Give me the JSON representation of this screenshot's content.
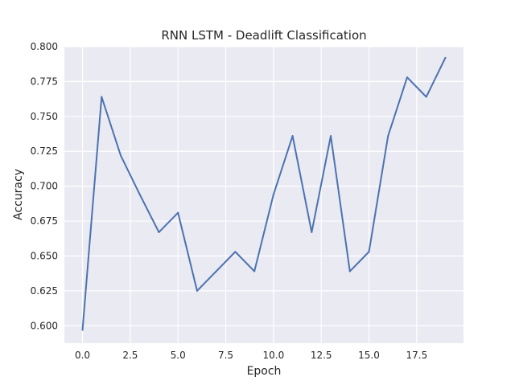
{
  "chart_data": {
    "type": "line",
    "title": "RNN LSTM - Deadlift Classification",
    "xlabel": "Epoch",
    "ylabel": "Accuracy",
    "xlim": [
      -0.95,
      19.95
    ],
    "ylim": [
      0.5875,
      0.8
    ],
    "xticks": [
      0.0,
      2.5,
      5.0,
      7.5,
      10.0,
      12.5,
      15.0,
      17.5
    ],
    "xtick_labels": [
      "0.0",
      "2.5",
      "5.0",
      "7.5",
      "10.0",
      "12.5",
      "15.0",
      "17.5"
    ],
    "yticks": [
      0.6,
      0.625,
      0.65,
      0.675,
      0.7,
      0.725,
      0.75,
      0.775,
      0.8
    ],
    "ytick_labels": [
      "0.600",
      "0.625",
      "0.650",
      "0.675",
      "0.700",
      "0.725",
      "0.750",
      "0.775",
      "0.800"
    ],
    "grid": true,
    "colors": {
      "background": "#eaeaf2",
      "grid": "#ffffff",
      "line": "#4c72b0"
    },
    "series": [
      {
        "x": [
          0,
          1,
          2,
          3,
          4,
          5,
          6,
          7,
          8,
          9,
          10,
          11,
          12,
          13,
          14,
          15,
          16,
          17,
          18,
          19
        ],
        "values": [
          0.597,
          0.764,
          0.722,
          0.694,
          0.667,
          0.681,
          0.625,
          0.639,
          0.653,
          0.639,
          0.694,
          0.736,
          0.667,
          0.736,
          0.639,
          0.653,
          0.736,
          0.778,
          0.764,
          0.792
        ]
      }
    ]
  }
}
